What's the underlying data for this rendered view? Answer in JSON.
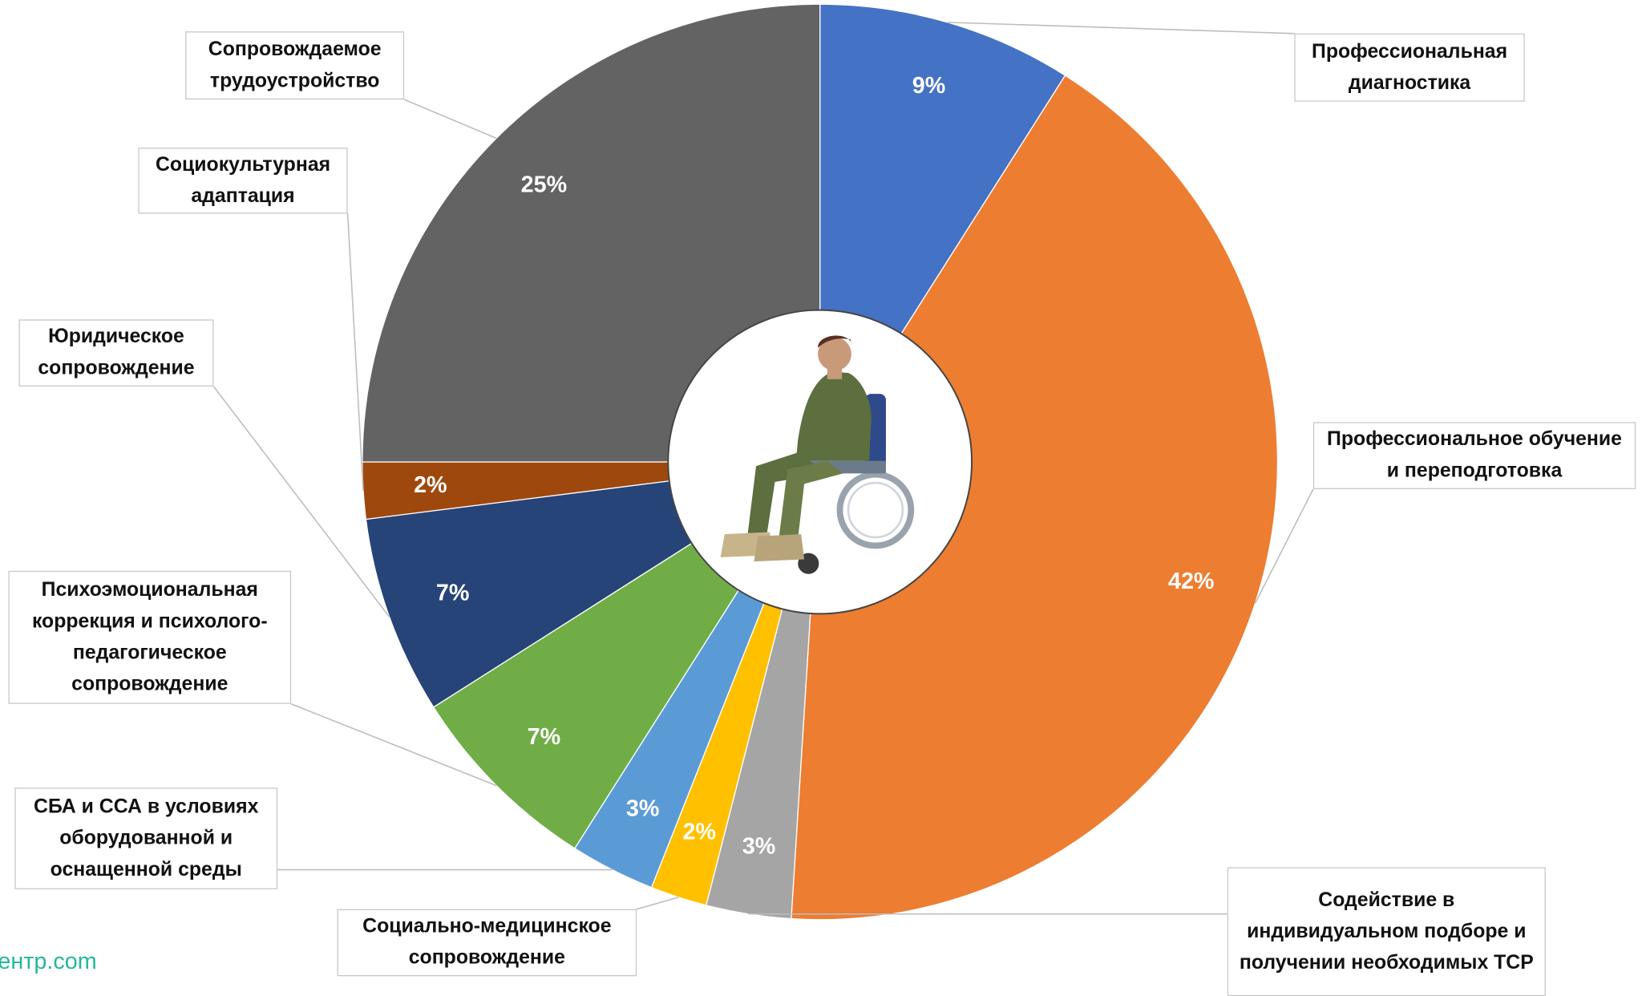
{
  "chart_data": {
    "type": "donut",
    "categories": [
      "Профессиональная диагностика",
      "Профессиональное обучение и переподготовка",
      "Содействие в индивидуальном подборе и получении необходимых ТСР",
      "Социально-медицинское сопровождение",
      "СБА и ССА в условиях оборудованной и оснащенной среды",
      "Психоэмоциональная коррекция и психолого-педагогическое сопровождение",
      "Юридическое сопровождение",
      "Социокультурная адаптация",
      "Сопровождаемое трудоустройство"
    ],
    "values": [
      9,
      42,
      3,
      2,
      3,
      7,
      7,
      2,
      25
    ],
    "value_labels": [
      "9%",
      "42%",
      "3%",
      "2%",
      "3%",
      "7%",
      "7%",
      "2%",
      "25%"
    ],
    "colors": [
      "#4472c4",
      "#ed7d31",
      "#a5a5a5",
      "#ffc000",
      "#5b9bd5",
      "#70ad47",
      "#264478",
      "#9e480e",
      "#636363"
    ]
  },
  "watermark": "ентр.com"
}
